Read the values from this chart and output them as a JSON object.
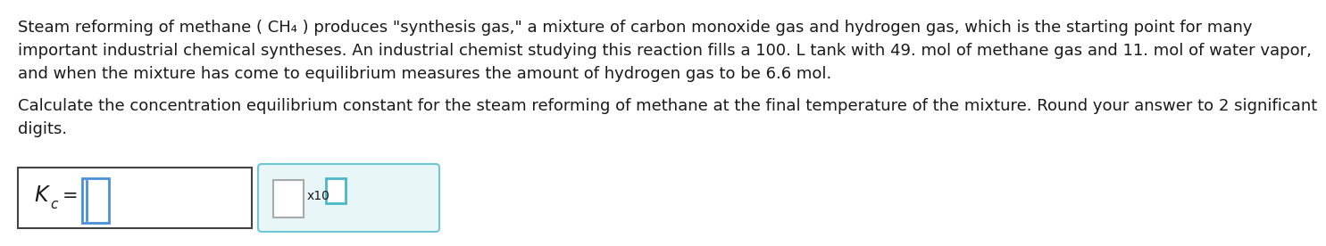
{
  "background_color": "#ffffff",
  "text_color": "#1a1a1a",
  "line1": "Steam reforming of methane ( CH₄ ) produces \"synthesis gas,\" a mixture of carbon monoxide gas and hydrogen gas, which is the starting point for many",
  "line2": "important industrial chemical syntheses. An industrial chemist studying this reaction fills a 100. L tank with 49. mol of methane gas and 11. mol of water vapor,",
  "line3": "and when the mixture has come to equilibrium measures the amount of hydrogen gas to be 6.6 mol.",
  "line4": "Calculate the concentration equilibrium constant for the steam reforming of methane at the final temperature of the mixture. Round your answer to 2 significant",
  "line5": "digits.",
  "font_size_body": 13.0,
  "box1_border_color": "#444444",
  "box2_border_color": "#6cc8d4",
  "box2_bg_color": "#e8f6f8",
  "input_field_color": "#4a90d9",
  "superscript_box_color": "#4ab8c8",
  "mant_box_color": "#aaaaaa",
  "x10_text": "x10"
}
